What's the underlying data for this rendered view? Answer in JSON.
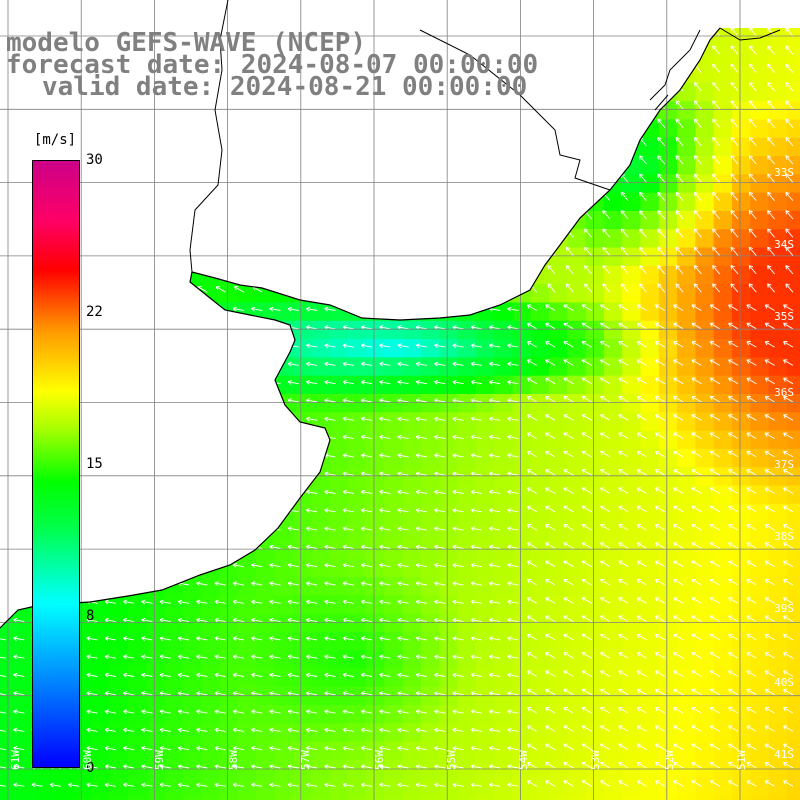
{
  "title": {
    "line1": "modelo GEFS-WAVE (NCEP)",
    "line2": "forecast date: 2024-08-07 00:00:00",
    "line3": "valid date: 2024-08-21 00:00:00"
  },
  "colorbar": {
    "unit": "[m/s]",
    "ticks": [
      "30",
      "22",
      "15",
      "8",
      "0"
    ],
    "tick_values": [
      30,
      22,
      15,
      8,
      0
    ],
    "range": [
      0,
      30
    ],
    "colors": [
      "#0000ff",
      "#00aaff",
      "#00ffff",
      "#00ff44",
      "#00ff00",
      "#aaff00",
      "#ffff00",
      "#ff9900",
      "#ff0000",
      "#ff0066",
      "#cc0088"
    ]
  },
  "lat_labels": [
    "33S",
    "34S",
    "35S",
    "36S",
    "37S",
    "38S",
    "39S",
    "40S",
    "41S"
  ],
  "lon_labels": [
    "61W",
    "60W",
    "59W",
    "58W",
    "57W",
    "56W",
    "55W",
    "54W",
    "53W",
    "52W",
    "51W"
  ],
  "map_colors": {
    "land": "#ffffff",
    "grid": "#808080",
    "coast": "#000000",
    "arrow": "#ffffff"
  }
}
